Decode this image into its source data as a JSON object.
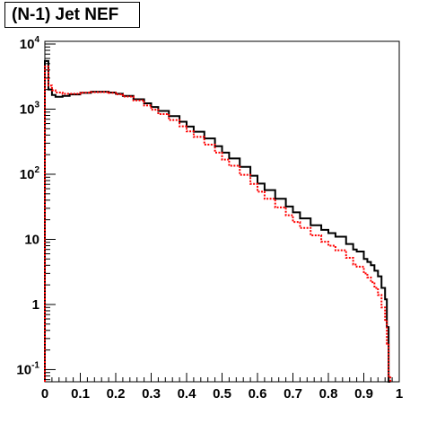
{
  "chart_data": {
    "type": "histogram",
    "title": "(N-1) Jet NEF",
    "xlabel": "",
    "ylabel": "",
    "xlim": [
      0,
      1
    ],
    "ylim": [
      0.065,
      11000
    ],
    "y_scale": "log",
    "grid": false,
    "legend": "none",
    "x_ticks": [
      "0",
      "0.1",
      "0.2",
      "0.3",
      "0.4",
      "0.5",
      "0.6",
      "0.7",
      "0.8",
      "0.9",
      "1"
    ],
    "y_ticks": [
      {
        "value": 0.1,
        "base": "10",
        "exp": "-1"
      },
      {
        "value": 1,
        "base": "1",
        "exp": ""
      },
      {
        "value": 10,
        "base": "10",
        "exp": ""
      },
      {
        "value": 100,
        "base": "10",
        "exp": "2"
      },
      {
        "value": 1000,
        "base": "10",
        "exp": "3"
      },
      {
        "value": 10000,
        "base": "10",
        "exp": "4"
      }
    ],
    "series": [
      {
        "style": "solid",
        "color": "#000000",
        "x": [
          0.0,
          0.01,
          0.02,
          0.03,
          0.05,
          0.07,
          0.1,
          0.13,
          0.15,
          0.18,
          0.2,
          0.22,
          0.25,
          0.28,
          0.3,
          0.32,
          0.35,
          0.38,
          0.4,
          0.42,
          0.45,
          0.48,
          0.5,
          0.52,
          0.55,
          0.58,
          0.6,
          0.62,
          0.65,
          0.68,
          0.7,
          0.72,
          0.75,
          0.78,
          0.8,
          0.82,
          0.85,
          0.87,
          0.88,
          0.9,
          0.91,
          0.92,
          0.93,
          0.94,
          0.95,
          0.96,
          0.965,
          0.97
        ],
        "y": [
          5500,
          2000,
          1650,
          1550,
          1600,
          1680,
          1780,
          1850,
          1850,
          1800,
          1720,
          1600,
          1420,
          1230,
          1080,
          940,
          780,
          640,
          540,
          450,
          355,
          270,
          215,
          175,
          130,
          95,
          72,
          57,
          42,
          32,
          26,
          21,
          16.5,
          14,
          12.5,
          11,
          8.5,
          7,
          6.5,
          5,
          4.5,
          4,
          3.3,
          2.7,
          1.8,
          1.2,
          0.45,
          0.06
        ]
      },
      {
        "style": "dotted",
        "color": "#ff0000",
        "x": [
          0.0,
          0.01,
          0.02,
          0.03,
          0.05,
          0.07,
          0.1,
          0.13,
          0.15,
          0.18,
          0.2,
          0.22,
          0.25,
          0.28,
          0.3,
          0.32,
          0.35,
          0.38,
          0.4,
          0.42,
          0.45,
          0.48,
          0.5,
          0.52,
          0.55,
          0.58,
          0.6,
          0.62,
          0.65,
          0.68,
          0.7,
          0.72,
          0.75,
          0.78,
          0.8,
          0.82,
          0.85,
          0.87,
          0.88,
          0.9,
          0.91,
          0.92,
          0.93,
          0.94,
          0.95,
          0.96,
          0.965,
          0.97
        ],
        "y": [
          4500,
          2300,
          1950,
          1800,
          1720,
          1720,
          1790,
          1820,
          1830,
          1780,
          1690,
          1560,
          1360,
          1140,
          980,
          840,
          680,
          545,
          455,
          375,
          285,
          215,
          168,
          135,
          98,
          71,
          54,
          42,
          31,
          23.5,
          18.5,
          15,
          11.5,
          9.2,
          8,
          6.8,
          5.2,
          4.1,
          3.8,
          3,
          2.6,
          2.2,
          1.8,
          1.4,
          0.9,
          0.55,
          0.25,
          0.08
        ]
      }
    ]
  }
}
